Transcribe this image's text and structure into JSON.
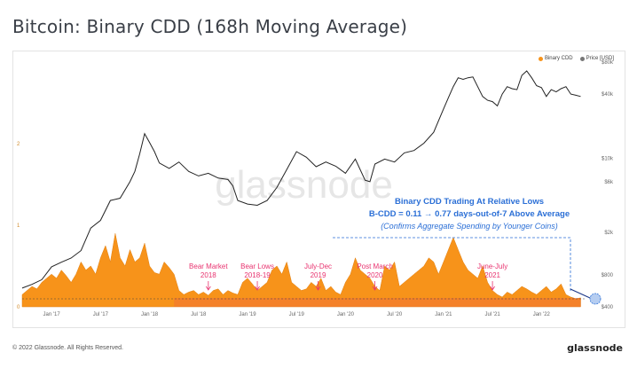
{
  "page": {
    "title": "Bitcoin: Binary CDD (168h Moving Average)",
    "copyright": "© 2022 Glassnode. All Rights Reserved.",
    "brand": "glassnode",
    "watermark": "glassnode"
  },
  "colors": {
    "cdd": "#f7931a",
    "price": "#222222",
    "annotation_pink": "#e8336f",
    "annotation_blue": "#2b6fd6"
  },
  "chart_data": {
    "type": "area",
    "title": "Bitcoin: Binary CDD (168h Moving Average)",
    "legend": {
      "placement": "top-right",
      "entries": [
        {
          "name": "Binary CDD",
          "color": "#f7931a"
        },
        {
          "name": "Price [USD]",
          "color": "#777777"
        }
      ]
    },
    "x_ticks": [
      "Jan '17",
      "Jul '17",
      "Jan '18",
      "Jul '18",
      "Jan '19",
      "Jul '19",
      "Jan '20",
      "Jul '20",
      "Jan '21",
      "Jul '21",
      "Jan '22"
    ],
    "x_tick_pos": [
      2017.0,
      2017.5,
      2018.0,
      2018.5,
      2019.0,
      2019.5,
      2020.0,
      2020.5,
      2021.0,
      2021.5,
      2022.0
    ],
    "x_range": [
      2016.7,
      2022.45
    ],
    "y_left": {
      "label": "",
      "ticks": [
        "0",
        "1",
        "2"
      ],
      "tick_values": [
        0,
        1,
        2
      ],
      "range": [
        0,
        3
      ]
    },
    "y_right": {
      "label": "",
      "scale": "log",
      "ticks": [
        "$400",
        "$800",
        "$2k",
        "$6k",
        "$10k",
        "$40k",
        "$80k"
      ],
      "tick_values": [
        400,
        800,
        2000,
        6000,
        10000,
        40000,
        80000
      ],
      "range": [
        400,
        80000
      ]
    },
    "grid": false,
    "series": [
      {
        "name": "Binary CDD",
        "type": "area",
        "axis": "left",
        "x": [
          2016.7,
          2016.75,
          2016.8,
          2016.85,
          2016.9,
          2016.95,
          2017.0,
          2017.05,
          2017.1,
          2017.15,
          2017.2,
          2017.25,
          2017.3,
          2017.35,
          2017.4,
          2017.45,
          2017.5,
          2017.55,
          2017.6,
          2017.65,
          2017.7,
          2017.75,
          2017.8,
          2017.85,
          2017.9,
          2017.95,
          2018.0,
          2018.05,
          2018.1,
          2018.15,
          2018.2,
          2018.25,
          2018.3,
          2018.35,
          2018.4,
          2018.45,
          2018.5,
          2018.55,
          2018.6,
          2018.65,
          2018.7,
          2018.75,
          2018.8,
          2018.85,
          2018.9,
          2018.95,
          2019.0,
          2019.05,
          2019.1,
          2019.15,
          2019.2,
          2019.25,
          2019.3,
          2019.35,
          2019.4,
          2019.45,
          2019.5,
          2019.55,
          2019.6,
          2019.65,
          2019.7,
          2019.75,
          2019.8,
          2019.85,
          2019.9,
          2019.95,
          2020.0,
          2020.05,
          2020.1,
          2020.15,
          2020.2,
          2020.25,
          2020.3,
          2020.35,
          2020.4,
          2020.45,
          2020.5,
          2020.55,
          2020.6,
          2020.65,
          2020.7,
          2020.75,
          2020.8,
          2020.85,
          2020.9,
          2020.95,
          2021.0,
          2021.05,
          2021.1,
          2021.15,
          2021.2,
          2021.25,
          2021.3,
          2021.35,
          2021.4,
          2021.45,
          2021.5,
          2021.55,
          2021.6,
          2021.65,
          2021.7,
          2021.75,
          2021.8,
          2021.85,
          2021.9,
          2021.95,
          2022.0,
          2022.05,
          2022.1,
          2022.15,
          2022.2,
          2022.25,
          2022.3,
          2022.35,
          2022.4
        ],
        "values": [
          0.15,
          0.2,
          0.25,
          0.22,
          0.3,
          0.35,
          0.4,
          0.35,
          0.45,
          0.38,
          0.3,
          0.4,
          0.55,
          0.45,
          0.5,
          0.4,
          0.6,
          0.75,
          0.55,
          0.9,
          0.6,
          0.5,
          0.7,
          0.55,
          0.6,
          0.78,
          0.5,
          0.42,
          0.4,
          0.55,
          0.48,
          0.4,
          0.2,
          0.15,
          0.18,
          0.2,
          0.15,
          0.18,
          0.14,
          0.2,
          0.22,
          0.15,
          0.2,
          0.17,
          0.15,
          0.3,
          0.35,
          0.28,
          0.2,
          0.25,
          0.3,
          0.45,
          0.5,
          0.4,
          0.55,
          0.3,
          0.25,
          0.2,
          0.22,
          0.3,
          0.25,
          0.35,
          0.2,
          0.25,
          0.18,
          0.15,
          0.3,
          0.4,
          0.6,
          0.45,
          0.4,
          0.35,
          0.25,
          0.2,
          0.5,
          0.45,
          0.55,
          0.25,
          0.3,
          0.35,
          0.4,
          0.45,
          0.5,
          0.6,
          0.55,
          0.4,
          0.55,
          0.7,
          0.85,
          0.7,
          0.55,
          0.45,
          0.4,
          0.35,
          0.5,
          0.3,
          0.2,
          0.15,
          0.12,
          0.18,
          0.15,
          0.2,
          0.25,
          0.22,
          0.18,
          0.15,
          0.2,
          0.25,
          0.18,
          0.22,
          0.28,
          0.15,
          0.12,
          0.1,
          0.11
        ]
      },
      {
        "name": "Price [USD]",
        "type": "line",
        "axis": "right",
        "x": [
          2016.7,
          2016.8,
          2016.9,
          2017.0,
          2017.1,
          2017.2,
          2017.3,
          2017.4,
          2017.5,
          2017.6,
          2017.7,
          2017.8,
          2017.85,
          2017.9,
          2017.95,
          2018.0,
          2018.05,
          2018.1,
          2018.2,
          2018.3,
          2018.4,
          2018.5,
          2018.6,
          2018.7,
          2018.8,
          2018.85,
          2018.9,
          2019.0,
          2019.1,
          2019.2,
          2019.3,
          2019.4,
          2019.5,
          2019.6,
          2019.7,
          2019.8,
          2019.9,
          2020.0,
          2020.1,
          2020.2,
          2020.25,
          2020.3,
          2020.4,
          2020.5,
          2020.6,
          2020.7,
          2020.8,
          2020.9,
          2021.0,
          2021.05,
          2021.1,
          2021.15,
          2021.2,
          2021.25,
          2021.3,
          2021.4,
          2021.45,
          2021.5,
          2021.55,
          2021.6,
          2021.65,
          2021.7,
          2021.75,
          2021.8,
          2021.85,
          2021.9,
          2021.95,
          2022.0,
          2022.05,
          2022.1,
          2022.15,
          2022.2,
          2022.25,
          2022.3,
          2022.35,
          2022.4
        ],
        "values": [
          600,
          650,
          720,
          950,
          1050,
          1150,
          1350,
          2200,
          2600,
          4000,
          4200,
          6000,
          7500,
          11000,
          17000,
          14000,
          11500,
          9000,
          8000,
          9200,
          7500,
          6800,
          7200,
          6500,
          6300,
          5500,
          4000,
          3700,
          3600,
          4000,
          5300,
          7800,
          11500,
          10200,
          8300,
          9200,
          8400,
          7200,
          9800,
          6200,
          6000,
          8800,
          9800,
          9200,
          11200,
          11800,
          13800,
          17500,
          29000,
          37000,
          47000,
          57000,
          55000,
          57000,
          58000,
          38000,
          35000,
          34000,
          31000,
          40000,
          47000,
          45000,
          44000,
          60000,
          66000,
          57000,
          48000,
          46000,
          38000,
          44000,
          42000,
          45000,
          47000,
          40000,
          39000,
          38000
        ]
      }
    ],
    "annotations": [
      {
        "lines": [
          "Bear Market",
          "2018"
        ],
        "x": 2018.6
      },
      {
        "lines": [
          "Bear Lows",
          "2018-19"
        ],
        "x": 2019.1
      },
      {
        "lines": [
          "July-Dec",
          "2019"
        ],
        "x": 2019.72
      },
      {
        "lines": [
          "Post March",
          "2020"
        ],
        "x": 2020.3
      },
      {
        "lines": [
          "June-July",
          "2021"
        ],
        "x": 2021.5
      }
    ],
    "callout": {
      "line1": "Binary CDD Trading At Relative Lows",
      "line2": "B-CDD = 0.11 → 0.77 days-out-of-7 Above Average",
      "line3": "(Confirms Aggregate Spending by Younger Coins)"
    }
  }
}
